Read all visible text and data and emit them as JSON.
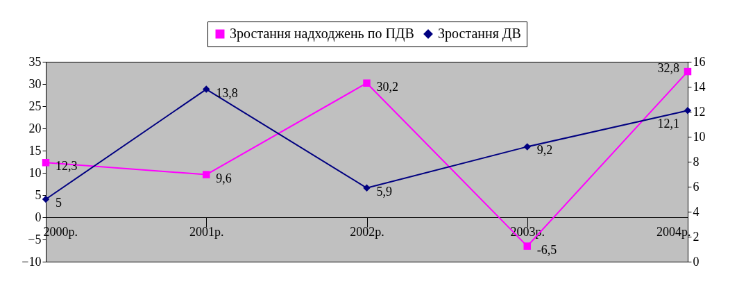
{
  "chart_data": {
    "type": "line",
    "categories": [
      "2000р.",
      "2001р.",
      "2002р.",
      "2003р.",
      "2004р."
    ],
    "series": [
      {
        "name": "Зростання надходжень по ПДВ",
        "color": "#ff00ff",
        "marker": "square",
        "values": [
          12.3,
          9.6,
          30.2,
          -6.5,
          32.8
        ],
        "value_labels": [
          "12,3",
          "9,6",
          "30,2",
          "-6,5",
          "32,8"
        ]
      },
      {
        "name": "Зростання ДВ",
        "color": "#000080",
        "marker": "diamond",
        "axis": "y2",
        "values": [
          5,
          13.8,
          5.9,
          9.2,
          12.1
        ],
        "value_labels": [
          "5",
          "13,8",
          "5,9",
          "9,2",
          "12,1"
        ]
      }
    ],
    "ylim": [
      -10,
      35
    ],
    "yticks": [
      -10,
      -5,
      0,
      5,
      10,
      15,
      20,
      25,
      30,
      35
    ],
    "y2lim": [
      0,
      16
    ],
    "y2ticks": [
      0,
      2,
      4,
      6,
      8,
      10,
      12,
      14,
      16
    ],
    "grid": false,
    "legend": "top"
  }
}
